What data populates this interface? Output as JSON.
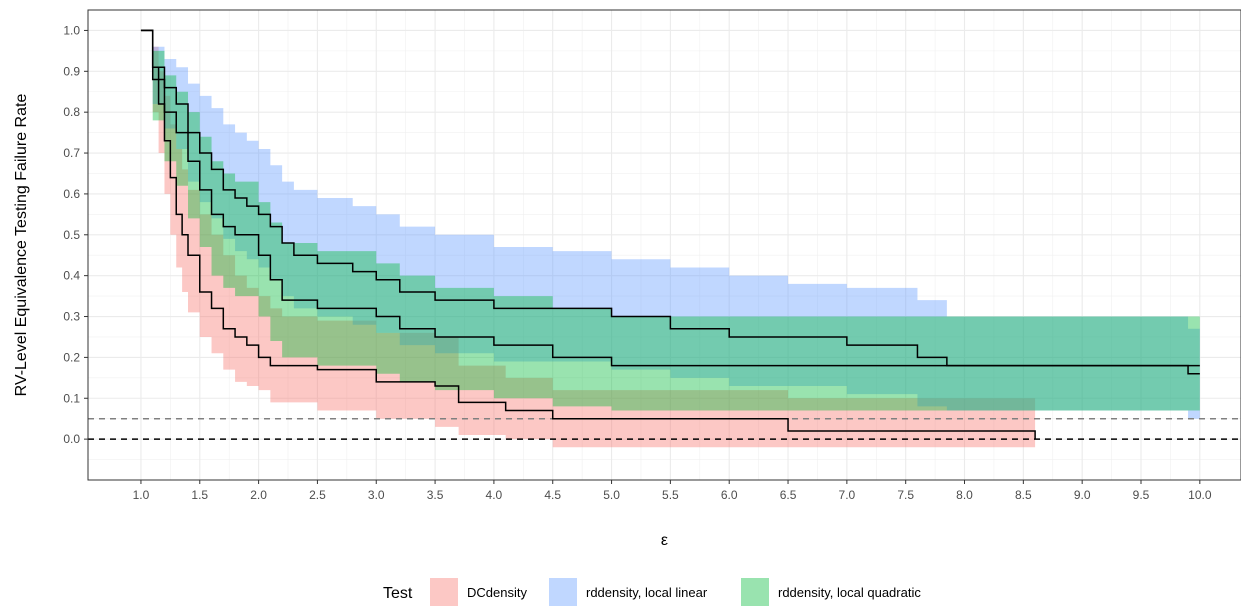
{
  "chart_data": {
    "type": "area",
    "title": "",
    "xlabel": "ε",
    "ylabel": "RV-Level Equivalence Testing Failure Rate",
    "xlim": [
      0.55,
      10.35
    ],
    "ylim": [
      -0.1,
      1.05
    ],
    "x_ticks": [
      1.0,
      1.5,
      2.0,
      2.5,
      3.0,
      3.5,
      4.0,
      4.5,
      5.0,
      5.5,
      6.0,
      6.5,
      7.0,
      7.5,
      8.0,
      8.5,
      9.0,
      9.5,
      10.0
    ],
    "x_tick_labels": [
      "1.0",
      "1.5",
      "2.0",
      "2.5",
      "3.0",
      "3.5",
      "4.0",
      "4.5",
      "5.0",
      "5.5",
      "6.0",
      "6.5",
      "7.0",
      "7.5",
      "8.0",
      "8.5",
      "9.0",
      "9.5",
      "10.0"
    ],
    "y_ticks": [
      0.0,
      0.1,
      0.2,
      0.3,
      0.4,
      0.5,
      0.6,
      0.7,
      0.8,
      0.9,
      1.0
    ],
    "y_tick_labels": [
      "0.0",
      "0.1",
      "0.2",
      "0.3",
      "0.4",
      "0.5",
      "0.6",
      "0.7",
      "0.8",
      "0.9",
      "1.0"
    ],
    "grid": true,
    "legend": {
      "title": "Test",
      "position": "bottom"
    },
    "reference_lines": [
      {
        "y": 0.0,
        "style": "dashed",
        "color": "#000000"
      },
      {
        "y": 0.05,
        "style": "dashed",
        "color": "#808080"
      }
    ],
    "series": [
      {
        "name": "DCdensity",
        "color": "#F8766D",
        "x": [
          1.0,
          1.1,
          1.15,
          1.2,
          1.25,
          1.3,
          1.35,
          1.4,
          1.5,
          1.6,
          1.7,
          1.8,
          1.9,
          2.0,
          2.1,
          2.2,
          2.5,
          3.0,
          3.5,
          3.7,
          4.1,
          4.5,
          5.0,
          6.5,
          8.6
        ],
        "y": [
          1.0,
          0.91,
          0.82,
          0.73,
          0.64,
          0.55,
          0.5,
          0.45,
          0.36,
          0.32,
          0.27,
          0.25,
          0.23,
          0.2,
          0.18,
          0.18,
          0.17,
          0.14,
          0.13,
          0.09,
          0.07,
          0.05,
          0.05,
          0.02,
          0.0
        ],
        "lower": [
          1.0,
          0.8,
          0.7,
          0.6,
          0.5,
          0.42,
          0.36,
          0.31,
          0.25,
          0.21,
          0.17,
          0.14,
          0.13,
          0.12,
          0.09,
          0.09,
          0.07,
          0.05,
          0.03,
          0.01,
          0.0,
          -0.02,
          -0.02,
          -0.02,
          -0.02
        ],
        "upper": [
          1.0,
          0.96,
          0.9,
          0.84,
          0.77,
          0.71,
          0.66,
          0.61,
          0.55,
          0.5,
          0.45,
          0.4,
          0.37,
          0.35,
          0.32,
          0.3,
          0.29,
          0.26,
          0.25,
          0.18,
          0.15,
          0.12,
          0.12,
          0.1,
          0.06
        ]
      },
      {
        "name": "rddensity, local linear",
        "color": "#619CFF",
        "x": [
          1.0,
          1.1,
          1.2,
          1.3,
          1.4,
          1.5,
          1.6,
          1.7,
          1.8,
          1.9,
          2.0,
          2.1,
          2.2,
          2.3,
          2.5,
          2.8,
          3.0,
          3.2,
          3.5,
          4.0,
          4.5,
          5.0,
          5.5,
          6.0,
          6.5,
          7.0,
          7.6,
          7.85,
          9.9,
          10.0
        ],
        "y": [
          1.0,
          0.91,
          0.86,
          0.82,
          0.75,
          0.7,
          0.66,
          0.61,
          0.59,
          0.57,
          0.55,
          0.52,
          0.48,
          0.45,
          0.43,
          0.41,
          0.39,
          0.36,
          0.34,
          0.32,
          0.32,
          0.3,
          0.27,
          0.25,
          0.25,
          0.23,
          0.2,
          0.18,
          0.16,
          0.16
        ],
        "lower": [
          1.0,
          0.82,
          0.76,
          0.71,
          0.63,
          0.58,
          0.54,
          0.49,
          0.46,
          0.44,
          0.42,
          0.39,
          0.35,
          0.32,
          0.3,
          0.28,
          0.26,
          0.23,
          0.21,
          0.19,
          0.19,
          0.17,
          0.15,
          0.13,
          0.13,
          0.11,
          0.08,
          0.07,
          0.05,
          0.05
        ],
        "upper": [
          1.0,
          0.96,
          0.93,
          0.91,
          0.87,
          0.84,
          0.81,
          0.77,
          0.75,
          0.73,
          0.71,
          0.67,
          0.63,
          0.61,
          0.59,
          0.57,
          0.55,
          0.52,
          0.5,
          0.47,
          0.46,
          0.44,
          0.42,
          0.4,
          0.38,
          0.37,
          0.34,
          0.3,
          0.27,
          0.27
        ]
      },
      {
        "name": "rddensity, local quadratic",
        "color": "#00BA38",
        "x": [
          1.0,
          1.1,
          1.2,
          1.3,
          1.4,
          1.5,
          1.6,
          1.7,
          1.8,
          2.0,
          2.1,
          2.2,
          2.5,
          3.0,
          3.2,
          3.5,
          4.0,
          4.5,
          5.0,
          6.0,
          6.5,
          7.0,
          9.9,
          10.0
        ],
        "y": [
          1.0,
          0.88,
          0.8,
          0.75,
          0.68,
          0.61,
          0.55,
          0.52,
          0.5,
          0.45,
          0.39,
          0.34,
          0.32,
          0.3,
          0.27,
          0.25,
          0.23,
          0.2,
          0.18,
          0.18,
          0.18,
          0.18,
          0.18,
          0.18
        ],
        "lower": [
          1.0,
          0.78,
          0.68,
          0.62,
          0.54,
          0.47,
          0.4,
          0.37,
          0.35,
          0.3,
          0.24,
          0.2,
          0.18,
          0.16,
          0.14,
          0.12,
          0.1,
          0.08,
          0.07,
          0.07,
          0.07,
          0.07,
          0.07,
          0.07
        ],
        "upper": [
          1.0,
          0.95,
          0.89,
          0.85,
          0.8,
          0.74,
          0.68,
          0.65,
          0.63,
          0.58,
          0.53,
          0.48,
          0.46,
          0.43,
          0.4,
          0.37,
          0.35,
          0.32,
          0.3,
          0.3,
          0.3,
          0.3,
          0.3,
          0.3
        ]
      }
    ]
  }
}
